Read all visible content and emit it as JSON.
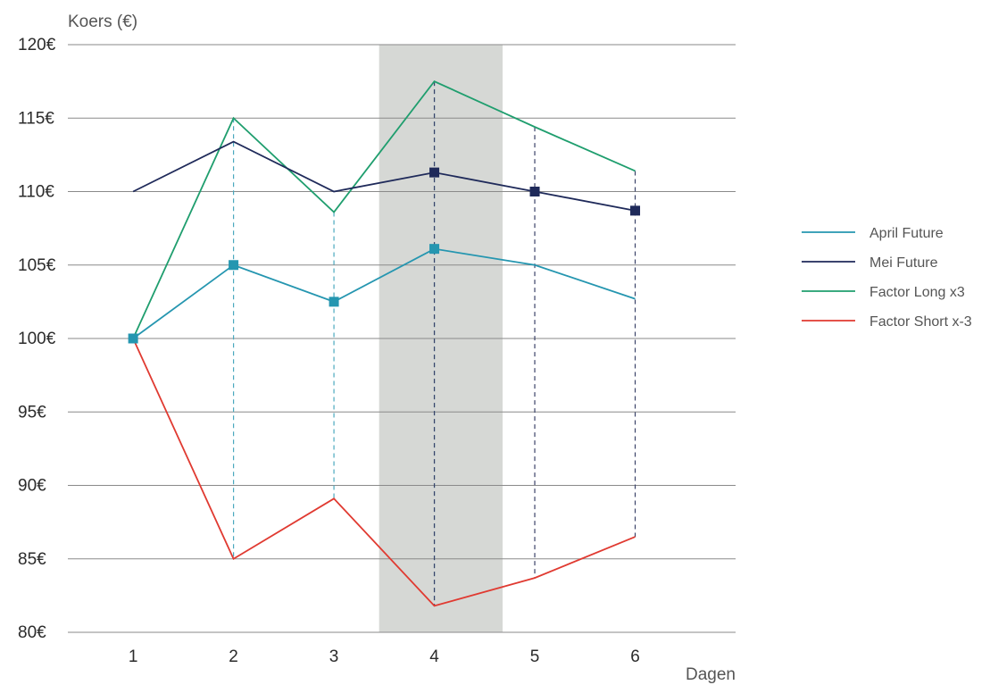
{
  "chart_data": {
    "type": "line",
    "ylabel": "Koers (€)",
    "xlabel": "Dagen",
    "x": [
      1,
      2,
      3,
      4,
      5,
      6
    ],
    "xlim": [
      0.35,
      7.0
    ],
    "ylim": [
      80,
      120
    ],
    "yticks": [
      80,
      85,
      90,
      95,
      100,
      105,
      110,
      115,
      120
    ],
    "ytick_labels": [
      "80€",
      "85€",
      "90€",
      "95€",
      "100€",
      "105€",
      "110€",
      "115€",
      "120€"
    ],
    "xtick_labels": [
      "1",
      "2",
      "3",
      "4",
      "5",
      "6"
    ],
    "grid": "horizontal",
    "highlight_band": {
      "x_from": 3.45,
      "x_to": 4.68,
      "color": "#d6d8d5"
    },
    "legend_position": "right",
    "series": [
      {
        "name": "April Future",
        "color": "#2596b0",
        "values": [
          100,
          105,
          102.5,
          106.1,
          105,
          102.7
        ],
        "markers": [
          1,
          2,
          3,
          4
        ],
        "marker_color": "#2596b0",
        "dashed_drops": [
          2,
          3,
          4
        ],
        "drop_color": "#4aa8be"
      },
      {
        "name": "Mei Future",
        "color": "#1f2a5a",
        "values": [
          110,
          113.4,
          110,
          111.3,
          110,
          108.7
        ],
        "markers": [
          4,
          5,
          6
        ],
        "marker_color": "#1f2a5a",
        "dashed_drops": [
          4,
          5,
          6
        ],
        "drop_color": "#3a4268"
      },
      {
        "name": "Factor Long x3",
        "color": "#1f9e6e",
        "values": [
          100,
          115,
          108.6,
          117.5,
          114.4,
          111.4
        ],
        "markers": [],
        "dashed_drops": []
      },
      {
        "name": "Factor Short x-3",
        "color": "#e03a31",
        "values": [
          100,
          85,
          89.1,
          81.8,
          83.7,
          86.5
        ],
        "markers": [],
        "dashed_drops": []
      }
    ]
  }
}
